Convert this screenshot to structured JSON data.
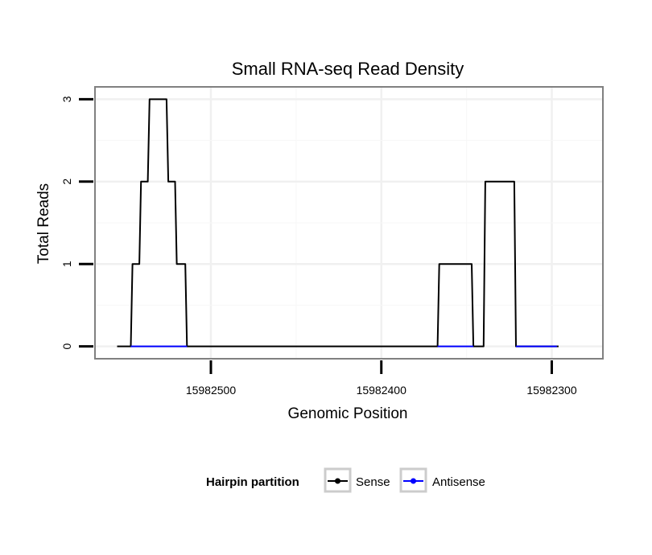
{
  "chart_data": {
    "type": "line",
    "title": "Small RNA-seq Read Density",
    "xlabel": "Genomic Position",
    "ylabel": "Total Reads",
    "x_reversed": true,
    "xlim": [
      15982568,
      15982270
    ],
    "ylim": [
      -0.15,
      3.15
    ],
    "x_ticks": [
      15982500,
      15982400,
      15982300
    ],
    "x_tick_labels": [
      "15982500",
      "15982400",
      "15982300"
    ],
    "y_ticks": [
      0,
      1,
      2,
      3
    ],
    "y_tick_labels": [
      "0",
      "1",
      "2",
      "3"
    ],
    "grid": true,
    "legend": {
      "title": "Hairpin partition",
      "position": "bottom",
      "entries": [
        {
          "label": "Sense",
          "color": "#000000"
        },
        {
          "label": "Antisense",
          "color": "#0000ff"
        }
      ]
    },
    "series": [
      {
        "name": "Sense",
        "color": "#000000",
        "points": [
          [
            15982555,
            0
          ],
          [
            15982547,
            0
          ],
          [
            15982546,
            1
          ],
          [
            15982542,
            1
          ],
          [
            15982541,
            2
          ],
          [
            15982537,
            2
          ],
          [
            15982536,
            3
          ],
          [
            15982526,
            3
          ],
          [
            15982525,
            2
          ],
          [
            15982521,
            2
          ],
          [
            15982520,
            1
          ],
          [
            15982515,
            1
          ],
          [
            15982514,
            0
          ],
          [
            15982367,
            0
          ],
          [
            15982366,
            1
          ],
          [
            15982347,
            1
          ],
          [
            15982346,
            0
          ],
          [
            15982340,
            0
          ],
          [
            15982339,
            2
          ],
          [
            15982322,
            2
          ],
          [
            15982321,
            0
          ],
          [
            15982297,
            0
          ],
          [
            15982296,
            0
          ]
        ]
      },
      {
        "name": "Antisense",
        "color": "#0000ff",
        "segments": [
          [
            [
              15982547,
              0
            ],
            [
              15982514,
              0
            ]
          ],
          [
            [
              15982367,
              0
            ],
            [
              15982346,
              0
            ]
          ],
          [
            [
              15982321,
              0
            ],
            [
              15982297,
              0
            ]
          ]
        ]
      }
    ]
  }
}
